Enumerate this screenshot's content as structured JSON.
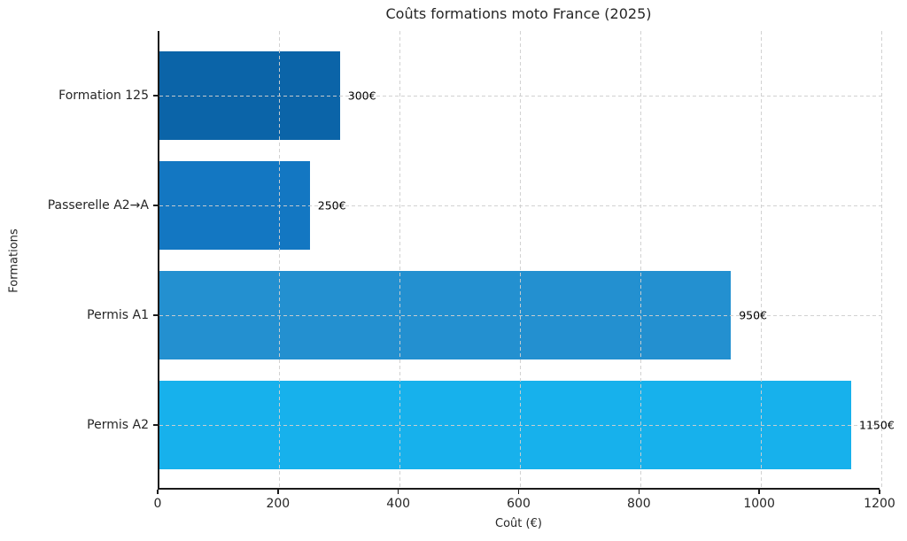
{
  "title": "Coûts formations moto France (2025)",
  "axes": {
    "xlabel": "Coût (€)",
    "ylabel": "Formations"
  },
  "chart_data": {
    "type": "bar",
    "orientation": "horizontal",
    "title": "Coûts formations moto France (2025)",
    "xlabel": "Coût (€)",
    "ylabel": "Formations",
    "categories": [
      "Formation 125",
      "Passerelle A2→A",
      "Permis A1",
      "Permis A2"
    ],
    "values": [
      300,
      250,
      950,
      1150
    ],
    "value_labels": [
      "300€",
      "250€",
      "950€",
      "1150€"
    ],
    "bar_colors": [
      "#0b64a8",
      "#1377c2",
      "#2390d0",
      "#17b1ec"
    ],
    "xlim": [
      0,
      1200
    ],
    "xticks": [
      0,
      200,
      400,
      600,
      800,
      1000,
      1200
    ],
    "xtick_labels": [
      "0",
      "200",
      "400",
      "600",
      "800",
      "1000",
      "1200"
    ],
    "grid": true,
    "grid_style": "dashed",
    "legend": false
  }
}
